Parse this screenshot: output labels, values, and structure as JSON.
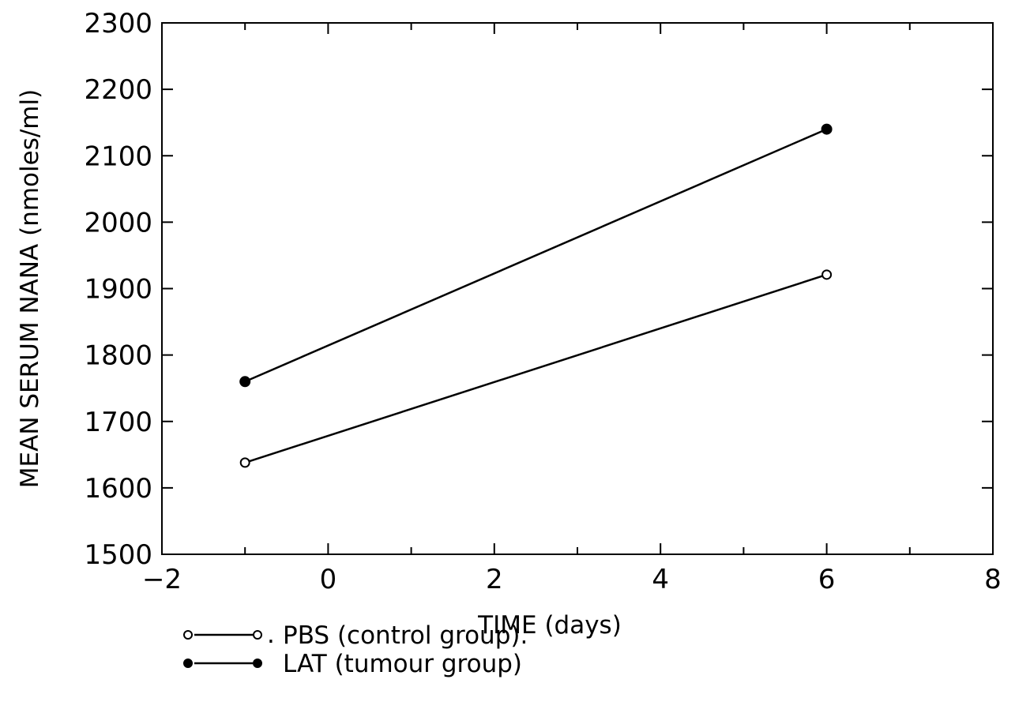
{
  "chart_data": {
    "type": "line",
    "title": "",
    "xlabel": "TIME (days)",
    "ylabel": "MEAN SERUM NANA (nmoles/ml)",
    "xlim": [
      -2,
      8
    ],
    "ylim": [
      1500,
      2300
    ],
    "x_ticks": [
      -2,
      0,
      2,
      4,
      6,
      8
    ],
    "x_minor_step": 1,
    "y_ticks": [
      1500,
      1600,
      1700,
      1800,
      1900,
      2000,
      2100,
      2200,
      2300
    ],
    "x_tick_labels": [
      "−2",
      "0",
      "2",
      "4",
      "6",
      "8"
    ],
    "y_tick_labels": [
      "1500",
      "1600",
      "1700",
      "1800",
      "1900",
      "2000",
      "2100",
      "2200",
      "2300"
    ],
    "grid": false,
    "legend_position": "bottom",
    "series": [
      {
        "name": "PBS (control group).",
        "legend_prefix": ".",
        "marker": "open-circle",
        "color": "#000000",
        "x": [
          -1,
          6
        ],
        "y": [
          1638,
          1921
        ]
      },
      {
        "name": "LAT (tumour group)",
        "legend_prefix": "",
        "marker": "filled-circle",
        "color": "#000000",
        "x": [
          -1,
          6
        ],
        "y": [
          1760,
          2140
        ]
      }
    ]
  }
}
